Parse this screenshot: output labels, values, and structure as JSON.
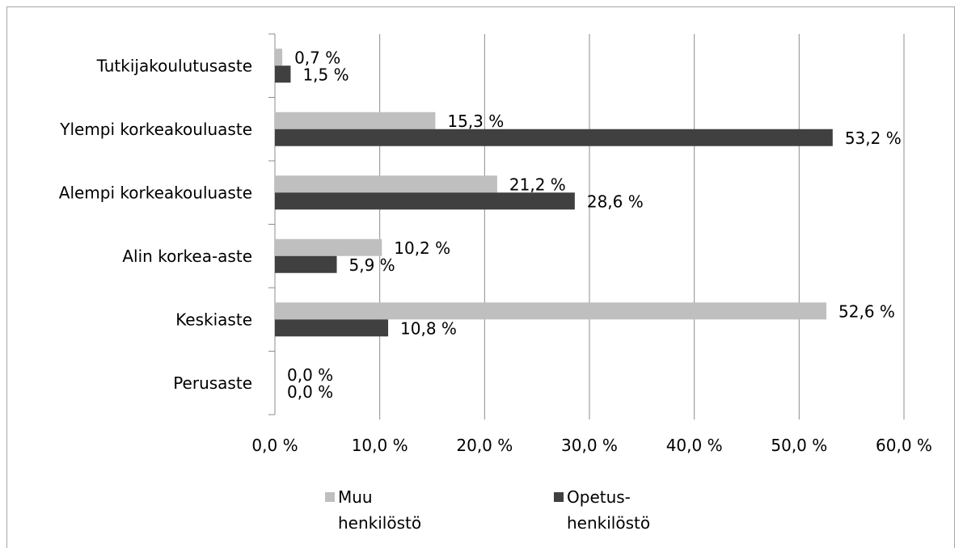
{
  "chart_data": {
    "type": "bar",
    "orientation": "horizontal",
    "categories": [
      "Tutkijakoulutusaste",
      "Ylempi korkeakouluaste",
      "Alempi korkeakouluaste",
      "Alin korkea-aste",
      "Keskiaste",
      "Perusaste"
    ],
    "series": [
      {
        "name": "Muu henkilöstö",
        "legend_lines": [
          "Muu",
          "henkilöstö"
        ],
        "values": [
          0.7,
          15.3,
          21.2,
          10.2,
          52.6,
          0.0
        ],
        "labels": [
          "0,7 %",
          "15,3 %",
          "21,2 %",
          "10,2 %",
          "52,6 %",
          "0,0 %"
        ],
        "color": "#bfbfbf"
      },
      {
        "name": "Opetus-henkilöstö",
        "legend_lines": [
          "Opetus-",
          "henkilöstö"
        ],
        "values": [
          1.5,
          53.2,
          28.6,
          5.9,
          10.8,
          0.0
        ],
        "labels": [
          "1,5 %",
          "53,2 %",
          "28,6 %",
          "5,9 %",
          "10,8 %",
          "0,0 %"
        ],
        "color": "#404040"
      }
    ],
    "xlim": [
      0,
      60
    ],
    "xticks": [
      0,
      10,
      20,
      30,
      40,
      50,
      60
    ],
    "xtick_labels": [
      "0,0 %",
      "10,0 %",
      "20,0 %",
      "30,0 %",
      "40,0 %",
      "50,0 %",
      "60,0 %"
    ],
    "grid": true,
    "gridline_color": "#8c8c8c",
    "legend_position": "bottom"
  }
}
